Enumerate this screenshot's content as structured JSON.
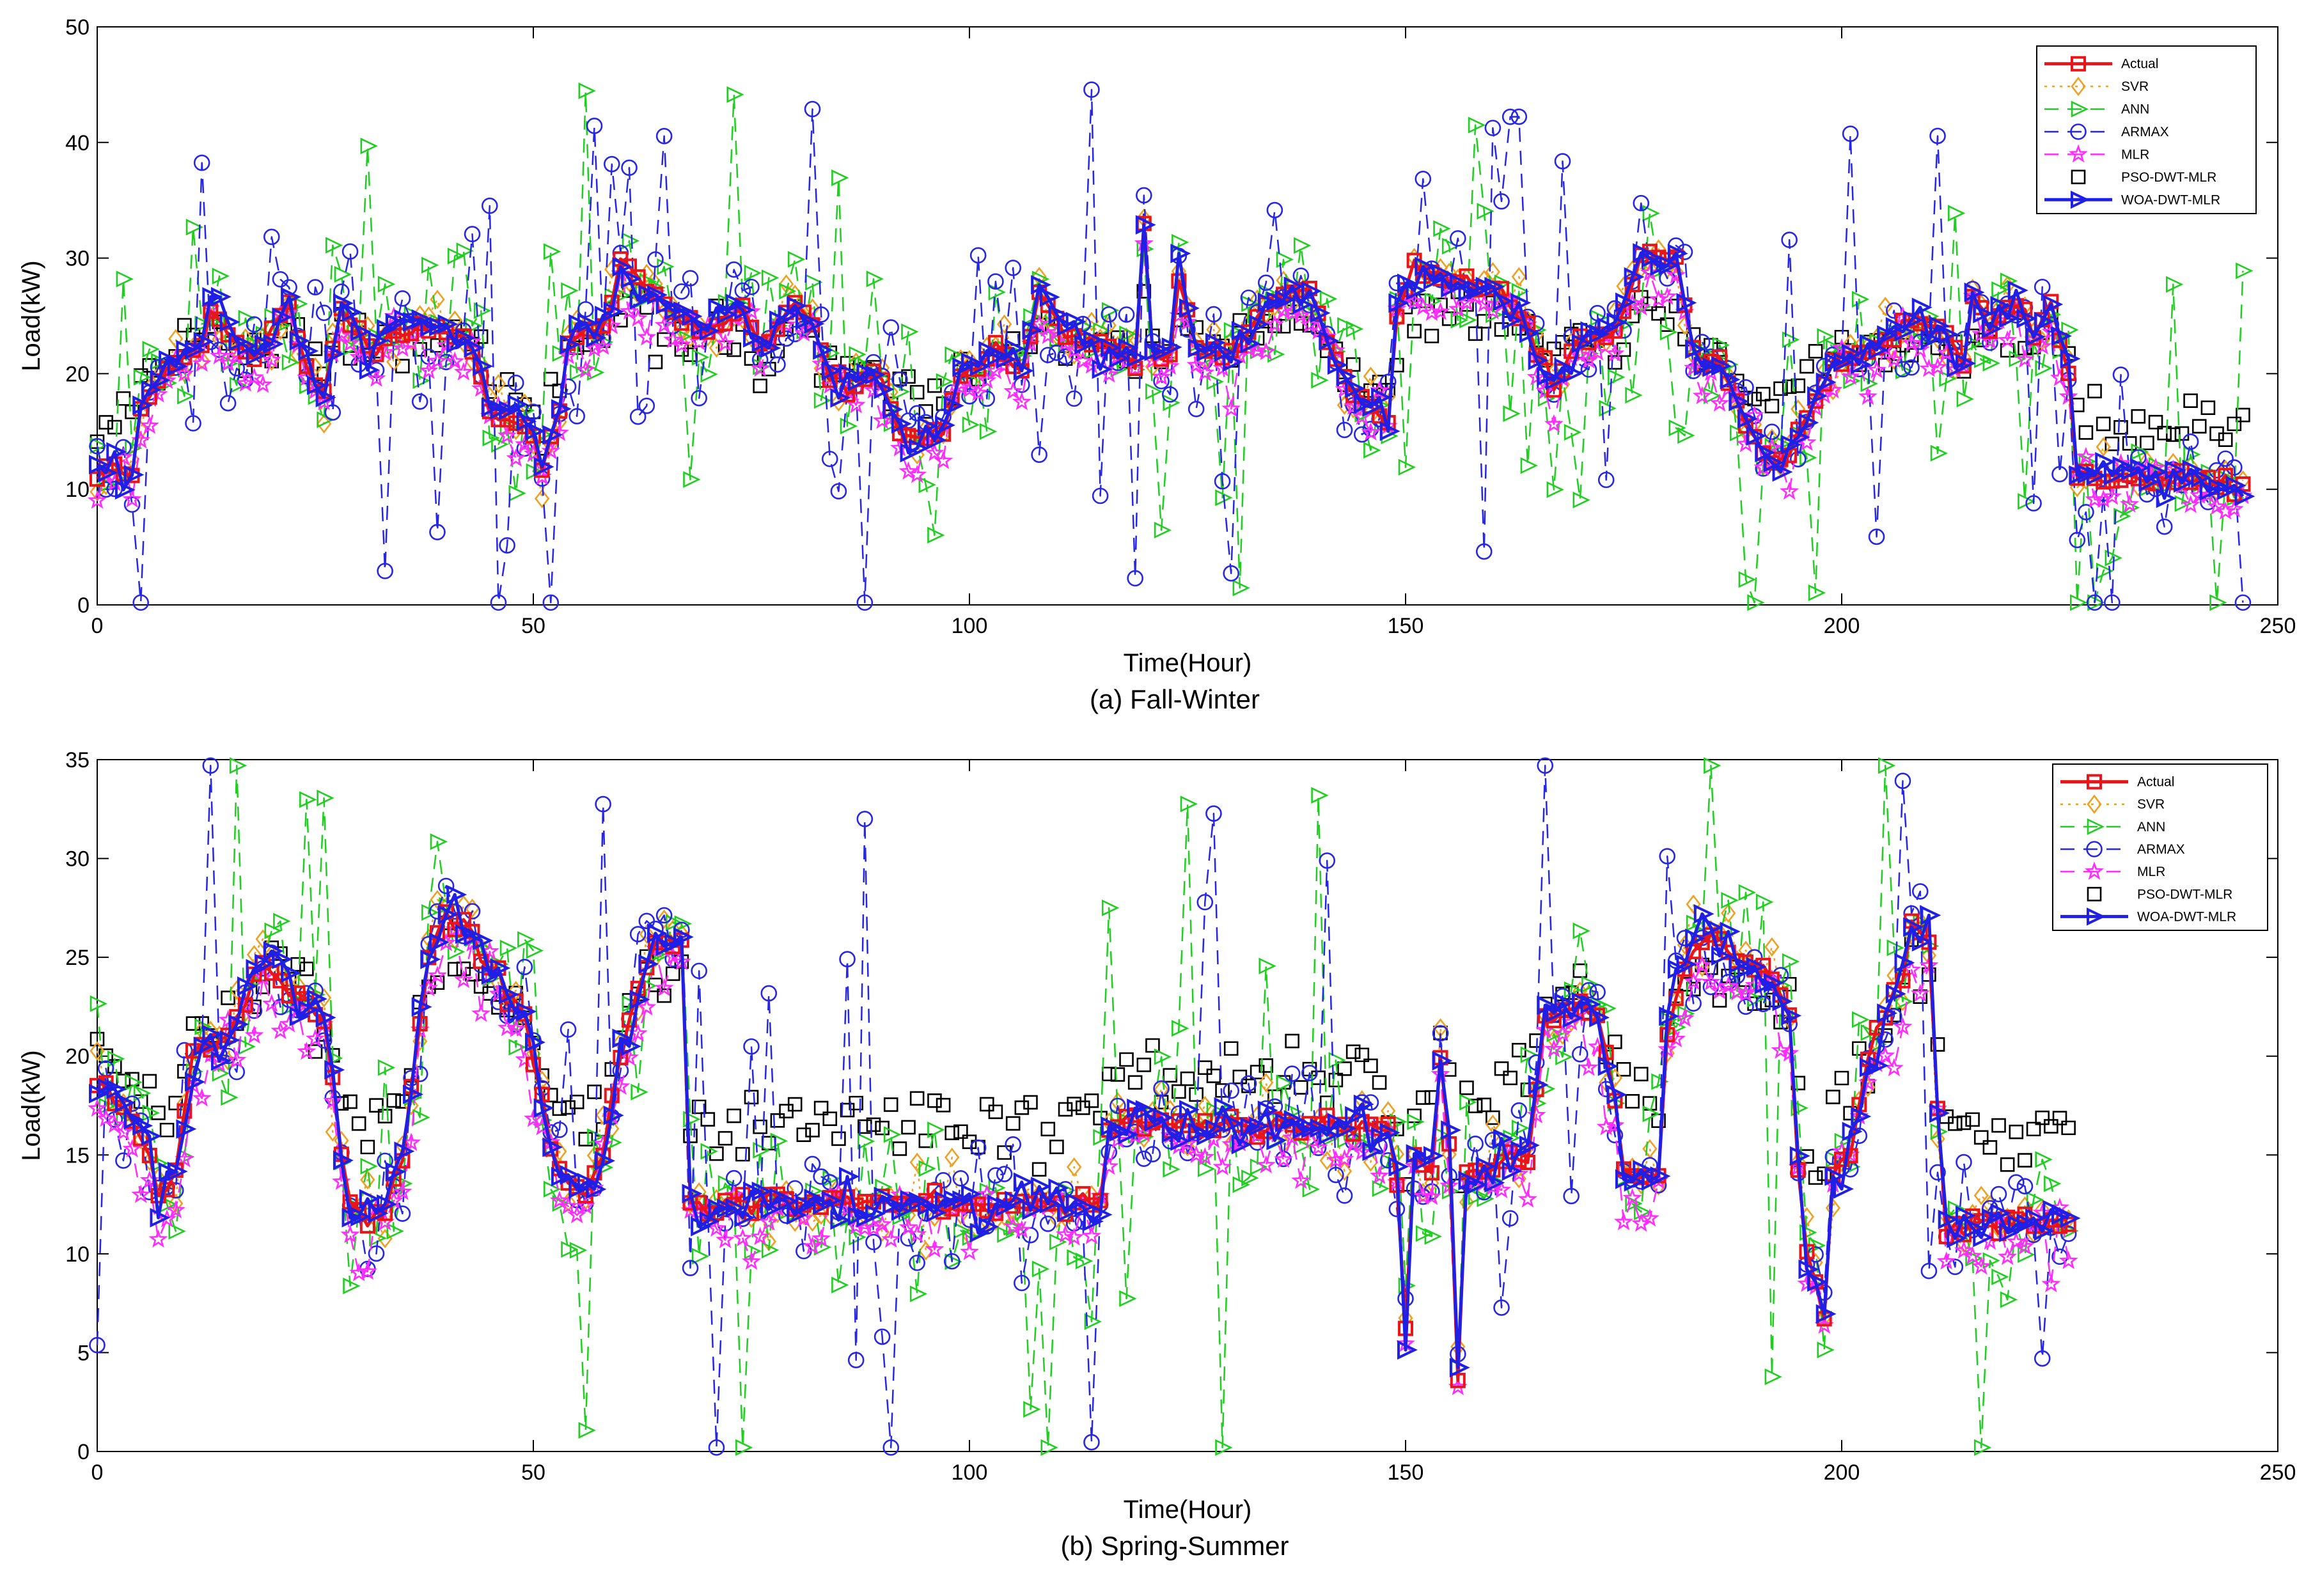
{
  "chart_data": [
    {
      "type": "line",
      "id": "fall",
      "caption": "(a) Fall-Winter",
      "xlabel": "Time(Hour)",
      "ylabel": "Load(kW)",
      "xlim": [
        0,
        250
      ],
      "ylim": [
        0,
        50
      ],
      "xticks": [
        0,
        50,
        100,
        150,
        200,
        250
      ],
      "yticks": [
        0,
        10,
        20,
        30,
        40,
        50
      ],
      "n_points": 246,
      "legend_position": "top-right",
      "actual_knots": [
        [
          0,
          11
        ],
        [
          2,
          12
        ],
        [
          4,
          11
        ],
        [
          5,
          17
        ],
        [
          8,
          21
        ],
        [
          12,
          22
        ],
        [
          13,
          25
        ],
        [
          18,
          21
        ],
        [
          22,
          26
        ],
        [
          24,
          21
        ],
        [
          26,
          18
        ],
        [
          28,
          26
        ],
        [
          31,
          22
        ],
        [
          34,
          24
        ],
        [
          40,
          24
        ],
        [
          43,
          22
        ],
        [
          45,
          17
        ],
        [
          50,
          15
        ],
        [
          51,
          12
        ],
        [
          53,
          17
        ],
        [
          54,
          23
        ],
        [
          58,
          24
        ],
        [
          60,
          29
        ],
        [
          64,
          27
        ],
        [
          66,
          25
        ],
        [
          70,
          24
        ],
        [
          74,
          26
        ],
        [
          76,
          22
        ],
        [
          80,
          26
        ],
        [
          82,
          24
        ],
        [
          84,
          20
        ],
        [
          86,
          19
        ],
        [
          89,
          20
        ],
        [
          91,
          17
        ],
        [
          93,
          14
        ],
        [
          97,
          15
        ],
        [
          99,
          20
        ],
        [
          104,
          22
        ],
        [
          106,
          20
        ],
        [
          108,
          27
        ],
        [
          111,
          23
        ],
        [
          114,
          23
        ],
        [
          118,
          22
        ],
        [
          119,
          21
        ],
        [
          120,
          33
        ],
        [
          121,
          22
        ],
        [
          123,
          21
        ],
        [
          124,
          29
        ],
        [
          126,
          22
        ],
        [
          130,
          22
        ],
        [
          132,
          24
        ],
        [
          136,
          27
        ],
        [
          139,
          27
        ],
        [
          141,
          23
        ],
        [
          143,
          19
        ],
        [
          146,
          17
        ],
        [
          148,
          16
        ],
        [
          149,
          25
        ],
        [
          151,
          29
        ],
        [
          156,
          28
        ],
        [
          161,
          27
        ],
        [
          163,
          25
        ],
        [
          165,
          22
        ],
        [
          167,
          19
        ],
        [
          170,
          23
        ],
        [
          174,
          24
        ],
        [
          177,
          30
        ],
        [
          181,
          30
        ],
        [
          183,
          22
        ],
        [
          186,
          21
        ],
        [
          189,
          16
        ],
        [
          191,
          13
        ],
        [
          193,
          12
        ],
        [
          196,
          16
        ],
        [
          199,
          21
        ],
        [
          203,
          22
        ],
        [
          207,
          24
        ],
        [
          211,
          24
        ],
        [
          214,
          21
        ],
        [
          215,
          27
        ],
        [
          217,
          24
        ],
        [
          220,
          26
        ],
        [
          222,
          24
        ],
        [
          224,
          26
        ],
        [
          225,
          23
        ],
        [
          226,
          20
        ],
        [
          227,
          11
        ],
        [
          230,
          11
        ],
        [
          234,
          11
        ],
        [
          240,
          11
        ],
        [
          245,
          10
        ],
        [
          246,
          10
        ]
      ],
      "series": [
        {
          "name": "Actual",
          "color": "#e8151b",
          "marker": "square",
          "dash": "solid",
          "noise": 0.4,
          "spike": 0.0,
          "seed": 11
        },
        {
          "name": "SVR",
          "color": "#f0a020",
          "marker": "diamond",
          "dash": "dotted",
          "noise": 1.1,
          "spike": 0.0,
          "seed": 23
        },
        {
          "name": "ANN",
          "color": "#1fcf1f",
          "marker": "triangle-right",
          "dash": "dashed",
          "noise": 2.6,
          "spike": 0.18,
          "seed": 37
        },
        {
          "name": "ARMAX",
          "color": "#2626e6",
          "marker": "circle",
          "dash": "dashed",
          "noise": 2.0,
          "spike": 0.22,
          "seed": 51
        },
        {
          "name": "MLR",
          "color": "#ff2bff",
          "marker": "star",
          "dash": "dashed",
          "noise": 1.2,
          "spike": 0.0,
          "seed": 67
        },
        {
          "name": "PSO-DWT-MLR",
          "color": "#000000",
          "marker": "square",
          "dash": "none",
          "noise": 1.2,
          "spike": 0.0,
          "seed": 79
        },
        {
          "name": "WOA-DWT-MLR",
          "color": "#1f1fe6",
          "marker": "triangle-right",
          "dash": "solid",
          "noise": 0.8,
          "spike": 0.0,
          "seed": 97
        }
      ]
    },
    {
      "type": "line",
      "id": "spring",
      "caption": "(b) Spring-Summer",
      "xlabel": "Time(Hour)",
      "ylabel": "Load(kW)",
      "xlim": [
        0,
        250
      ],
      "ylim": [
        0,
        35
      ],
      "xticks": [
        0,
        50,
        100,
        150,
        200,
        250
      ],
      "yticks": [
        0,
        5,
        10,
        15,
        20,
        25,
        30,
        35
      ],
      "n_points": 226,
      "legend_position": "top-right",
      "actual_knots": [
        [
          0,
          19
        ],
        [
          4,
          17
        ],
        [
          6,
          15
        ],
        [
          7,
          13
        ],
        [
          9,
          14
        ],
        [
          11,
          20
        ],
        [
          15,
          21
        ],
        [
          19,
          25
        ],
        [
          22,
          23
        ],
        [
          26,
          22
        ],
        [
          28,
          15
        ],
        [
          29,
          12
        ],
        [
          33,
          12
        ],
        [
          35,
          15
        ],
        [
          38,
          25
        ],
        [
          40,
          27.5
        ],
        [
          43,
          26
        ],
        [
          46,
          24
        ],
        [
          49,
          22
        ],
        [
          51,
          18
        ],
        [
          53,
          14
        ],
        [
          56,
          13
        ],
        [
          58,
          15
        ],
        [
          60,
          20
        ],
        [
          63,
          25
        ],
        [
          66,
          26
        ],
        [
          67,
          26
        ],
        [
          68,
          12.5
        ],
        [
          75,
          12.5
        ],
        [
          80,
          12.5
        ],
        [
          90,
          12.5
        ],
        [
          100,
          12.5
        ],
        [
          110,
          12.5
        ],
        [
          115,
          12.5
        ],
        [
          116,
          16.5
        ],
        [
          130,
          16.5
        ],
        [
          140,
          16.5
        ],
        [
          148,
          16.5
        ],
        [
          149,
          14
        ],
        [
          150,
          6
        ],
        [
          151,
          15
        ],
        [
          153,
          14
        ],
        [
          154,
          20
        ],
        [
          155,
          15
        ],
        [
          156,
          4
        ],
        [
          157,
          14
        ],
        [
          159,
          14
        ],
        [
          162,
          15
        ],
        [
          164,
          15
        ],
        [
          166,
          22
        ],
        [
          170,
          23
        ],
        [
          172,
          22
        ],
        [
          174,
          18
        ],
        [
          175,
          14
        ],
        [
          177,
          14
        ],
        [
          179,
          14
        ],
        [
          180,
          21
        ],
        [
          182,
          25
        ],
        [
          185,
          26
        ],
        [
          188,
          25
        ],
        [
          192,
          24
        ],
        [
          194,
          22
        ],
        [
          195,
          15
        ],
        [
          196,
          10
        ],
        [
          197,
          9
        ],
        [
          198,
          7
        ],
        [
          199,
          14
        ],
        [
          201,
          15
        ],
        [
          203,
          20
        ],
        [
          207,
          24
        ],
        [
          208,
          27
        ],
        [
          210,
          26
        ],
        [
          211,
          17
        ],
        [
          212,
          11.5
        ],
        [
          215,
          11.5
        ],
        [
          220,
          11.5
        ],
        [
          226,
          11.5
        ]
      ],
      "series": [
        {
          "name": "Actual",
          "color": "#e8151b",
          "marker": "square",
          "dash": "solid",
          "noise": 0.3,
          "spike": 0.0,
          "seed": 13
        },
        {
          "name": "SVR",
          "color": "#f0a020",
          "marker": "diamond",
          "dash": "dotted",
          "noise": 0.9,
          "spike": 0.0,
          "seed": 29
        },
        {
          "name": "ANN",
          "color": "#1fcf1f",
          "marker": "triangle-right",
          "dash": "dashed",
          "noise": 2.2,
          "spike": 0.1,
          "seed": 41
        },
        {
          "name": "ARMAX",
          "color": "#2626e6",
          "marker": "circle",
          "dash": "dashed",
          "noise": 1.4,
          "spike": 0.12,
          "seed": 53
        },
        {
          "name": "MLR",
          "color": "#ff2bff",
          "marker": "star",
          "dash": "dashed",
          "noise": 1.0,
          "spike": 0.0,
          "seed": 71
        },
        {
          "name": "PSO-DWT-MLR",
          "color": "#000000",
          "marker": "square",
          "dash": "none",
          "noise": 0.9,
          "spike": 0.0,
          "seed": 83
        },
        {
          "name": "WOA-DWT-MLR",
          "color": "#1f1fe6",
          "marker": "triangle-right",
          "dash": "solid",
          "noise": 0.6,
          "spike": 0.0,
          "seed": 101
        }
      ]
    }
  ]
}
